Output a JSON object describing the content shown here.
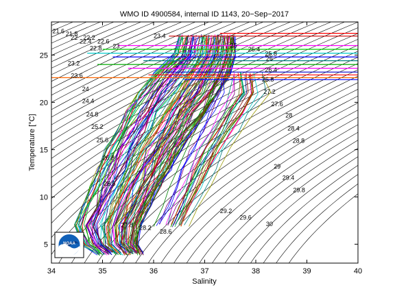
{
  "chart_data": {
    "type": "scatter",
    "title": "WMO ID 4900584, internal ID 1143, 20−Sep−2017",
    "xlabel": "Salinity",
    "ylabel": "Temperature [°C]",
    "xlim": [
      34,
      40
    ],
    "ylim": [
      3,
      28.5
    ],
    "xticks": [
      "34",
      "35",
      "36",
      "37",
      "38",
      "39",
      "40"
    ],
    "yticks": [
      "5",
      "10",
      "15",
      "20",
      "25"
    ],
    "grid": false,
    "legend": "none",
    "density_contours": {
      "reference_pressure_dbar": 0,
      "levels_step": 0.2,
      "level_min": 21.4,
      "level_max": 30.8,
      "labels": [
        {
          "text": "21.6",
          "x": 34.02,
          "y": 27.3
        },
        {
          "text": "21.8",
          "x": 34.28,
          "y": 27.0
        },
        {
          "text": "22",
          "x": 34.38,
          "y": 26.6
        },
        {
          "text": "22.2",
          "x": 34.62,
          "y": 26.6
        },
        {
          "text": "22.4",
          "x": 34.55,
          "y": 26.2
        },
        {
          "text": "22.6",
          "x": 34.9,
          "y": 26.2
        },
        {
          "text": "22.8",
          "x": 34.75,
          "y": 25.5
        },
        {
          "text": "23",
          "x": 35.2,
          "y": 25.7
        },
        {
          "text": "23.2",
          "x": 34.32,
          "y": 23.9
        },
        {
          "text": "23.4",
          "x": 36.0,
          "y": 26.8
        },
        {
          "text": "23.6",
          "x": 34.38,
          "y": 22.6
        },
        {
          "text": "24",
          "x": 34.6,
          "y": 21.2
        },
        {
          "text": "24.4",
          "x": 34.6,
          "y": 19.9
        },
        {
          "text": "24.8",
          "x": 34.68,
          "y": 18.5
        },
        {
          "text": "25.2",
          "x": 34.78,
          "y": 17.2
        },
        {
          "text": "25.6",
          "x": 34.88,
          "y": 15.8
        },
        {
          "text": "25",
          "x": 37.5,
          "y": 25.8
        },
        {
          "text": "25.4",
          "x": 37.85,
          "y": 25.4
        },
        {
          "text": "25.8",
          "x": 38.18,
          "y": 24.9
        },
        {
          "text": "26",
          "x": 38.2,
          "y": 24.4
        },
        {
          "text": "26.4",
          "x": 38.18,
          "y": 23.2
        },
        {
          "text": "26.8",
          "x": 38.12,
          "y": 22.2
        },
        {
          "text": "27.2",
          "x": 38.15,
          "y": 20.9
        },
        {
          "text": "27.6",
          "x": 38.3,
          "y": 19.6
        },
        {
          "text": "28",
          "x": 38.58,
          "y": 18.4
        },
        {
          "text": "28.4",
          "x": 38.62,
          "y": 17.0
        },
        {
          "text": "28.8",
          "x": 38.72,
          "y": 15.7
        },
        {
          "text": "29",
          "x": 38.35,
          "y": 13.0
        },
        {
          "text": "29.4",
          "x": 38.52,
          "y": 11.8
        },
        {
          "text": "29.8",
          "x": 38.73,
          "y": 10.5
        },
        {
          "text": "29.2",
          "x": 37.3,
          "y": 8.3
        },
        {
          "text": "29.6",
          "x": 37.68,
          "y": 7.6
        },
        {
          "text": "30",
          "x": 38.2,
          "y": 6.9
        },
        {
          "text": "26.8",
          "x": 35.0,
          "y": 13.9
        },
        {
          "text": "26.6",
          "x": 35.02,
          "y": 11.2
        },
        {
          "text": "27.8",
          "x": 35.36,
          "y": 6.8
        },
        {
          "text": "28.2",
          "x": 35.72,
          "y": 6.5
        },
        {
          "text": "28.6",
          "x": 36.12,
          "y": 6.1
        }
      ]
    },
    "profiles_count": 120,
    "profile_envelope": {
      "main_group": [
        {
          "T": 27.0,
          "S_min": 36.5,
          "S_max": 37.6
        },
        {
          "T": 25.0,
          "S_min": 36.4,
          "S_max": 37.6
        },
        {
          "T": 23.0,
          "S_min": 36.0,
          "S_max": 37.5
        },
        {
          "T": 21.0,
          "S_min": 35.7,
          "S_max": 37.3
        },
        {
          "T": 19.0,
          "S_min": 35.45,
          "S_max": 37.05
        },
        {
          "T": 17.0,
          "S_min": 35.25,
          "S_max": 36.8
        },
        {
          "T": 15.0,
          "S_min": 35.05,
          "S_max": 36.55
        },
        {
          "T": 13.0,
          "S_min": 34.9,
          "S_max": 36.35
        },
        {
          "T": 11.0,
          "S_min": 34.75,
          "S_max": 36.15
        },
        {
          "T": 9.0,
          "S_min": 34.6,
          "S_max": 35.95
        },
        {
          "T": 7.0,
          "S_min": 34.45,
          "S_max": 35.75
        },
        {
          "T": 5.0,
          "S_min": 34.6,
          "S_max": 35.7
        },
        {
          "T": 4.0,
          "S_min": 34.9,
          "S_max": 35.8
        }
      ],
      "saline_group": [
        {
          "T": 23.0,
          "S_min": 37.2,
          "S_max": 38.2
        },
        {
          "T": 21.0,
          "S_min": 37.1,
          "S_max": 38.3
        },
        {
          "T": 19.0,
          "S_min": 37.0,
          "S_max": 38.0
        },
        {
          "T": 17.0,
          "S_min": 36.8,
          "S_max": 37.75
        },
        {
          "T": 15.0,
          "S_min": 36.6,
          "S_max": 37.5
        },
        {
          "T": 13.0,
          "S_min": 36.45,
          "S_max": 37.3
        },
        {
          "T": 11.0,
          "S_min": 36.3,
          "S_max": 37.1
        },
        {
          "T": 9.0,
          "S_min": 36.15,
          "S_max": 36.9
        },
        {
          "T": 7.0,
          "S_min": 36.0,
          "S_max": 36.7
        }
      ]
    },
    "horizontal_lines": [
      {
        "T": 27.3,
        "S_min": 37.3,
        "S_max": 40.0,
        "color": "#ff0000"
      },
      {
        "T": 27.0,
        "S_min": 36.3,
        "S_max": 40.0,
        "color": "#cc0000"
      },
      {
        "T": 26.0,
        "S_min": 35.3,
        "S_max": 40.0,
        "color": "#ff00ff"
      },
      {
        "T": 25.6,
        "S_min": 35.0,
        "S_max": 40.0,
        "color": "#00cc00"
      },
      {
        "T": 25.2,
        "S_min": 34.7,
        "S_max": 40.0,
        "color": "#00cccc"
      },
      {
        "T": 24.8,
        "S_min": 35.2,
        "S_max": 40.0,
        "color": "#0000ff"
      },
      {
        "T": 24.4,
        "S_min": 35.8,
        "S_max": 40.0,
        "color": "#008080"
      },
      {
        "T": 24.0,
        "S_min": 34.9,
        "S_max": 40.0,
        "color": "#00aa00"
      },
      {
        "T": 23.6,
        "S_min": 35.5,
        "S_max": 40.0,
        "color": "#ff00ff"
      },
      {
        "T": 23.2,
        "S_min": 36.2,
        "S_max": 40.0,
        "color": "#0000cc"
      },
      {
        "T": 22.9,
        "S_min": 35.9,
        "S_max": 40.0,
        "color": "#ff0000"
      },
      {
        "T": 22.6,
        "S_min": 34.0,
        "S_max": 40.0,
        "color": "#ff6600"
      },
      {
        "T": 22.4,
        "S_min": 36.6,
        "S_max": 40.0,
        "color": "#0000ff"
      }
    ],
    "colors": [
      "#0000ff",
      "#00aa00",
      "#ff0000",
      "#00cccc",
      "#ff00ff",
      "#999900",
      "#000080",
      "#008000",
      "#800000",
      "#008080",
      "#800080",
      "#666600"
    ],
    "logo": "NOAA"
  }
}
